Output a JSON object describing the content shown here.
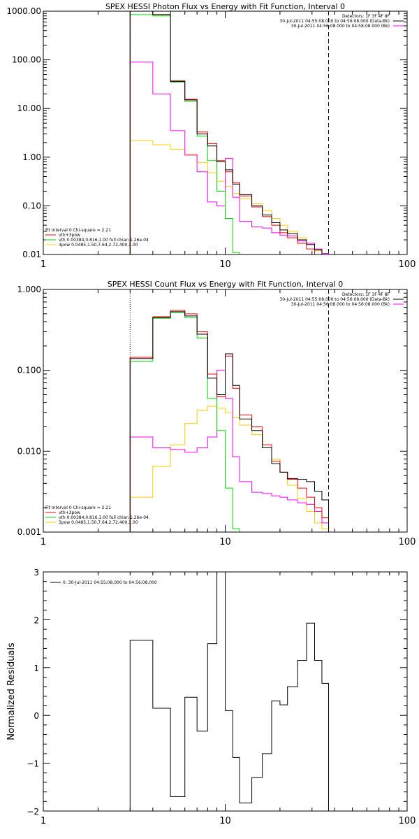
{
  "colors": {
    "data": "#000000",
    "total": "#ff0000",
    "vth": "#00dd00",
    "pow": "#ffcc00",
    "bk": "#ff00ff",
    "axis": "#000000"
  },
  "chart_data": [
    {
      "type": "line",
      "title": "SPEX HESSI Photon Flux vs Energy with Fit Function, Interval 0",
      "xlabel": "",
      "ylabel": "",
      "xscale": "log",
      "yscale": "log",
      "xlim": [
        1,
        100
      ],
      "ylim": [
        0.01,
        1000
      ],
      "xticks": [
        "1",
        "10",
        "100"
      ],
      "yticks": [
        "0.01",
        "0.10",
        "1.00",
        "10.00",
        "100.00",
        "1000.00"
      ],
      "x_edges": [
        3,
        4,
        5,
        6,
        7,
        8,
        9,
        10,
        11,
        12,
        14,
        16,
        18,
        20,
        22,
        25,
        28,
        31,
        34,
        37
      ],
      "vlines": {
        "dotted": 3,
        "dashed": 37
      },
      "info_top": [
        "Detectors: 1F 3F 4F 8F",
        "30-Jul-2011 04:55:08.000 to 04:56:08.000 (Data-Bk)",
        "30-Jul-2011 04:56:08.000 to 04:58:08.000 (Bk)"
      ],
      "info_bottom": [
        "Fit Interval 0   Chi-square = 2.21",
        "vth+3pow",
        "vth 0.00384,0.816,1.00   full chian 1.26e-04",
        "3pow 0.0485,1.50,7.64,2.72,400,1.00"
      ],
      "series": [
        {
          "name": "Data-Bk",
          "color": "#000000",
          "values": [
            1000,
            850,
            36,
            15,
            3.0,
            1.7,
            0.8,
            0.55,
            0.28,
            0.17,
            0.1,
            0.065,
            0.045,
            0.032,
            0.027,
            0.02,
            0.016,
            0.0125,
            0.0085
          ]
        },
        {
          "name": "vth+3pow",
          "color": "#ff0000",
          "values": [
            1000,
            850,
            37,
            15.5,
            3.3,
            1.9,
            0.85,
            0.5,
            0.3,
            0.16,
            0.095,
            0.06,
            0.04,
            0.028,
            0.022,
            0.017,
            0.013,
            0.0095,
            0.007
          ]
        },
        {
          "name": "vth",
          "color": "#00dd00",
          "values": [
            850,
            800,
            35,
            14,
            2.7,
            0.85,
            0.2,
            0.055,
            0.011,
            null,
            null,
            null,
            null,
            null,
            null,
            null,
            null,
            null,
            null
          ]
        },
        {
          "name": "3pow",
          "color": "#ffcc00",
          "values": [
            2.2,
            1.8,
            1.45,
            1.15,
            0.78,
            0.48,
            0.32,
            0.25,
            0.18,
            0.14,
            0.11,
            0.08,
            0.055,
            0.04,
            0.03,
            0.022,
            0.017,
            0.012,
            0.0085
          ]
        },
        {
          "name": "Bk",
          "color": "#ff00ff",
          "values": [
            90,
            20,
            3.5,
            1.1,
            0.5,
            0.12,
            0.1,
            0.95,
            0.15,
            0.048,
            0.037,
            0.035,
            0.028,
            0.025,
            0.024,
            0.019,
            0.017,
            0.013,
            0.0105
          ]
        }
      ]
    },
    {
      "type": "line",
      "title": "SPEX HESSI Count Flux vs Energy with Fit Function, Interval 0",
      "xlabel": "",
      "ylabel": "",
      "xscale": "log",
      "yscale": "log",
      "xlim": [
        1,
        100
      ],
      "ylim": [
        0.001,
        1
      ],
      "xticks": [
        "1",
        "10",
        "100"
      ],
      "yticks": [
        "0.001",
        "0.010",
        "0.100",
        "1.000"
      ],
      "x_edges": [
        3,
        4,
        5,
        6,
        7,
        8,
        9,
        10,
        11,
        12,
        14,
        16,
        18,
        20,
        22,
        25,
        28,
        31,
        34,
        37,
        40
      ],
      "vlines": {
        "dotted": 3,
        "dashed": 37
      },
      "info_top": [
        "Detectors: 1F 3F 4F 8F",
        "30-Jul-2011 04:55:08.000 to 04:56:08.000 (Data-Bk)",
        "30-Jul-2011 04:56:08.000 to 04:58:08.000 (Bk)"
      ],
      "info_bottom": [
        "Fit Interval 0   Chi-square = 2.21",
        "vth+3pow",
        "vth 0.00384,0.816,1.00   full chian 1.26e-04",
        "3pow 0.0485,1.50,7.64,2.72,400,1.00"
      ],
      "series": [
        {
          "name": "Data-Bk",
          "color": "#000000",
          "values": [
            0.14,
            0.45,
            0.53,
            0.47,
            0.28,
            0.08,
            0.05,
            0.16,
            0.065,
            0.025,
            0.018,
            0.011,
            0.007,
            0.0055,
            0.0046,
            0.0045,
            0.0042,
            0.0032,
            0.0025,
            null
          ]
        },
        {
          "name": "vth+3pow",
          "color": "#ff0000",
          "values": [
            0.145,
            0.46,
            0.55,
            0.5,
            0.3,
            0.09,
            0.047,
            0.15,
            0.06,
            0.028,
            0.02,
            0.012,
            0.0075,
            0.0055,
            0.0045,
            0.0035,
            0.0027,
            0.002,
            0.0015,
            null
          ]
        },
        {
          "name": "vth",
          "color": "#00dd00",
          "values": [
            0.13,
            0.44,
            0.52,
            0.45,
            0.25,
            0.045,
            0.018,
            0.0035,
            0.0011,
            null,
            null,
            null,
            null,
            null,
            null,
            null,
            null,
            null,
            null,
            null
          ]
        },
        {
          "name": "3pow",
          "color": "#ffcc00",
          "values": [
            0.0027,
            0.0065,
            0.012,
            0.022,
            0.032,
            0.036,
            0.034,
            0.03,
            0.026,
            0.021,
            0.016,
            0.011,
            0.008,
            0.0055,
            0.0038,
            0.0026,
            0.0018,
            0.0013,
            0.0011,
            0.0009
          ]
        },
        {
          "name": "Bk",
          "color": "#ff00ff",
          "values": [
            0.015,
            0.011,
            0.0105,
            0.0097,
            0.011,
            0.015,
            0.1,
            0.045,
            0.0085,
            0.0042,
            0.0031,
            0.003,
            0.0028,
            0.0027,
            0.0025,
            0.0023,
            0.0022,
            0.0018,
            0.0013,
            null
          ]
        }
      ]
    },
    {
      "type": "line",
      "title": "",
      "xlabel": "",
      "ylabel": "Normalized Residuals",
      "xscale": "log",
      "yscale": "linear",
      "xlim": [
        1,
        100
      ],
      "ylim": [
        -2,
        3
      ],
      "xticks": [
        "1",
        "10",
        "100"
      ],
      "yticks": [
        "−2",
        "−1",
        "0",
        "1",
        "2",
        "3"
      ],
      "x_edges": [
        3,
        4,
        5,
        6,
        7,
        8,
        9,
        10,
        11,
        12,
        14,
        16,
        18,
        20,
        22,
        25,
        28,
        31,
        34,
        37
      ],
      "legend": "0. 30-Jul-2011 04:55:08.000 to 04:56:08.000",
      "series": [
        {
          "name": "",
          "color": "#000000",
          "values": [
            1.57,
            0.15,
            -1.7,
            0.38,
            -0.33,
            1.5,
            3.0,
            0.1,
            -0.88,
            -1.83,
            -1.3,
            -0.8,
            0.3,
            0.22,
            0.6,
            1.15,
            1.93,
            1.15,
            0.67
          ]
        }
      ]
    }
  ]
}
